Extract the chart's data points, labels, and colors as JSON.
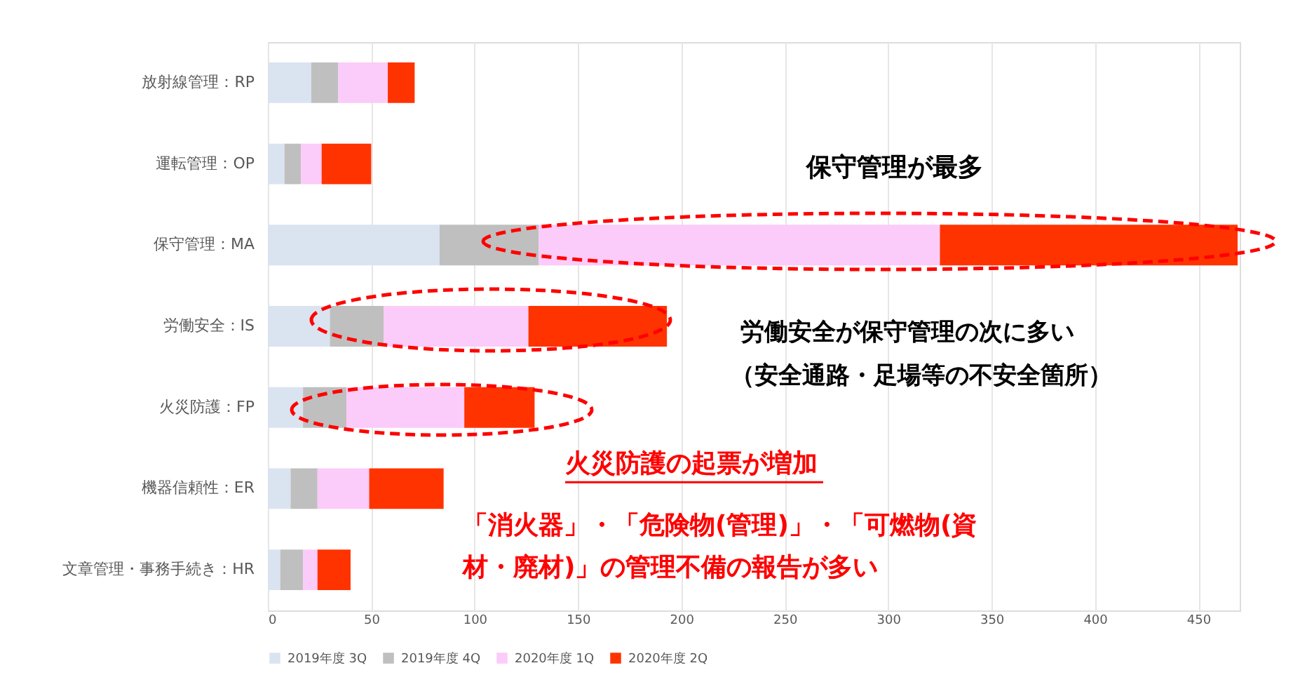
{
  "chart_data": {
    "type": "bar",
    "orientation": "horizontal",
    "stacked": true,
    "categories": [
      "放射線管理：RP",
      "運転管理：OP",
      "保守管理：MA",
      "労働安全：IS",
      "火災防護：FP",
      "機器信頼性：ER",
      "文章管理・事務手続き：HR"
    ],
    "series": [
      {
        "name": "2019年度 3Q",
        "color": "#dae3f0",
        "values": [
          21,
          8,
          83,
          30,
          17,
          11,
          6
        ]
      },
      {
        "name": "2019年度 4Q",
        "color": "#bfbfbf",
        "values": [
          13,
          8,
          48,
          26,
          21,
          13,
          11
        ]
      },
      {
        "name": "2020年度 1Q",
        "color": "#fbcbf9",
        "values": [
          24,
          10,
          194,
          70,
          57,
          25,
          7
        ]
      },
      {
        "name": "2020年度 2Q",
        "color": "#ff3300",
        "values": [
          13,
          24,
          144,
          67,
          34,
          36,
          16
        ]
      }
    ],
    "xlim": [
      0,
      470
    ],
    "xticks": [
      0,
      50,
      100,
      150,
      200,
      250,
      300,
      350,
      400,
      450
    ],
    "grid": "x",
    "legend": "bottom",
    "annotations": [
      "保守管理が最多",
      "労働安全が保守管理の次に多い",
      "（安全通路・足場等の不安全箇所）",
      "火災防護の起票が増加",
      "「消火器」・「危険物(管理)」・「可燃物(資",
      "材・廃材)」の管理不備の報告が多い"
    ]
  }
}
